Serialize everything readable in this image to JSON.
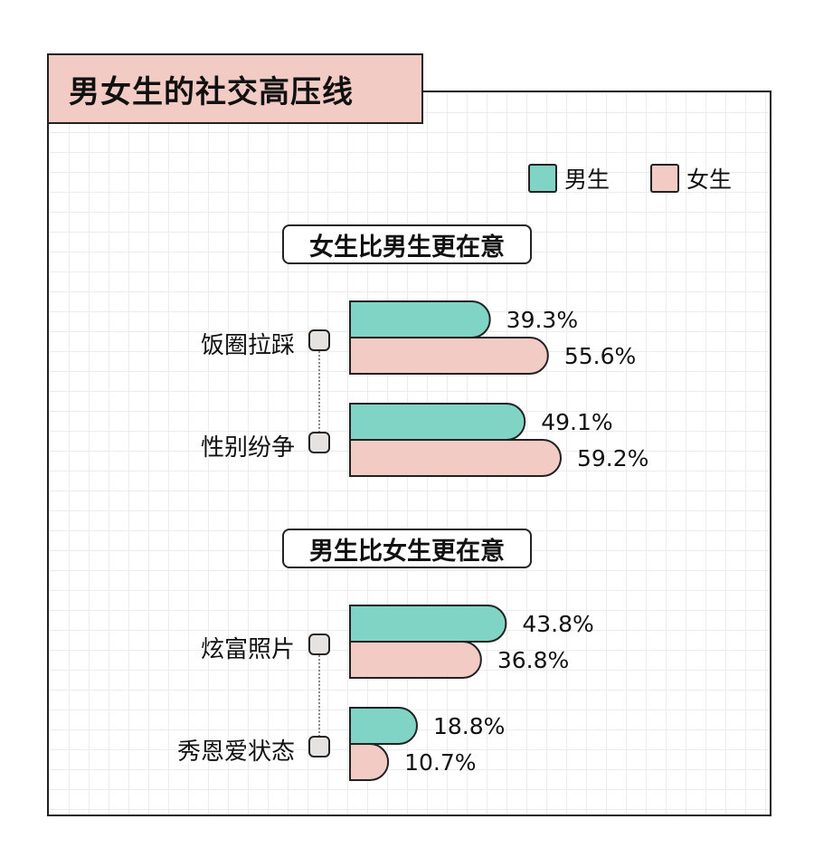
{
  "chart_data": {
    "type": "bar",
    "title": "男女生的社交高压线",
    "orientation": "horizontal",
    "legend_position": "top-right",
    "colors": {
      "男生": "#7fd4c6",
      "女生": "#f2cbc4"
    },
    "groups": [
      {
        "label": "女生比男生更在意",
        "categories": [
          "饭圈拉踩",
          "性别纷争"
        ],
        "series": [
          {
            "name": "男生",
            "values": [
              39.3,
              49.1
            ],
            "labels": [
              "39.3%",
              "49.1%"
            ]
          },
          {
            "name": "女生",
            "values": [
              55.6,
              59.2
            ],
            "labels": [
              "55.6%",
              "59.2%"
            ]
          }
        ]
      },
      {
        "label": "男生比女生更在意",
        "categories": [
          "炫富照片",
          "秀恩爱状态"
        ],
        "series": [
          {
            "name": "男生",
            "values": [
              43.8,
              18.8
            ],
            "labels": [
              "43.8%",
              "18.8%"
            ]
          },
          {
            "name": "女生",
            "values": [
              36.8,
              10.7
            ],
            "labels": [
              "36.8%",
              "10.7%"
            ]
          }
        ]
      }
    ]
  },
  "legend": {
    "male": "男生",
    "female": "女生"
  }
}
